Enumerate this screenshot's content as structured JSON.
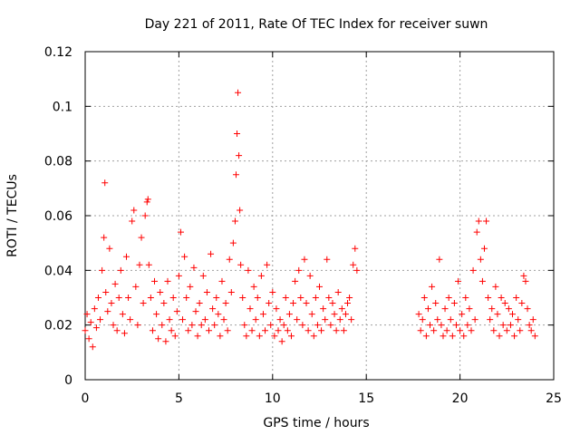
{
  "chart_data": {
    "type": "scatter",
    "title": "Day 221 of 2011, Rate Of TEC Index for receiver suwn",
    "xlabel": "GPS time / hours",
    "ylabel": "ROTI / TECUs",
    "xlim": [
      0,
      25
    ],
    "ylim": [
      0,
      0.12
    ],
    "xticks": [
      "0",
      "5",
      "10",
      "15",
      "20",
      "25"
    ],
    "yticks": [
      "0",
      "0.02",
      "0.04",
      "0.06",
      "0.08",
      "0.1",
      "0.12"
    ],
    "grid": true,
    "marker": "plus",
    "color": "#ff0000",
    "x": [
      0.0,
      0.1,
      0.2,
      0.3,
      0.4,
      0.5,
      0.6,
      0.7,
      0.8,
      0.9,
      1.0,
      1.05,
      1.1,
      1.2,
      1.3,
      1.4,
      1.5,
      1.6,
      1.7,
      1.8,
      1.9,
      2.0,
      2.1,
      2.2,
      2.3,
      2.4,
      2.5,
      2.6,
      2.7,
      2.8,
      2.9,
      3.0,
      3.1,
      3.2,
      3.3,
      3.35,
      3.4,
      3.5,
      3.6,
      3.7,
      3.8,
      3.9,
      4.0,
      4.1,
      4.2,
      4.3,
      4.4,
      4.5,
      4.6,
      4.7,
      4.8,
      4.9,
      5.0,
      5.1,
      5.2,
      5.3,
      5.4,
      5.5,
      5.6,
      5.7,
      5.8,
      5.9,
      6.0,
      6.1,
      6.2,
      6.3,
      6.4,
      6.5,
      6.6,
      6.7,
      6.8,
      6.9,
      7.0,
      7.1,
      7.2,
      7.3,
      7.4,
      7.5,
      7.6,
      7.7,
      7.8,
      7.9,
      8.0,
      8.05,
      8.1,
      8.15,
      8.2,
      8.25,
      8.3,
      8.4,
      8.5,
      8.6,
      8.7,
      8.8,
      8.9,
      9.0,
      9.1,
      9.2,
      9.3,
      9.4,
      9.5,
      9.6,
      9.7,
      9.8,
      9.9,
      10.0,
      10.1,
      10.2,
      10.3,
      10.4,
      10.5,
      10.6,
      10.7,
      10.8,
      10.9,
      11.0,
      11.1,
      11.2,
      11.3,
      11.4,
      11.5,
      11.6,
      11.7,
      11.8,
      11.9,
      12.0,
      12.1,
      12.2,
      12.3,
      12.4,
      12.5,
      12.6,
      12.7,
      12.8,
      12.9,
      13.0,
      13.1,
      13.2,
      13.3,
      13.4,
      13.5,
      13.6,
      13.7,
      13.8,
      13.9,
      14.0,
      14.1,
      14.2,
      14.3,
      14.4,
      14.5,
      17.8,
      17.9,
      18.0,
      18.1,
      18.2,
      18.3,
      18.4,
      18.5,
      18.6,
      18.7,
      18.8,
      18.9,
      19.0,
      19.1,
      19.2,
      19.3,
      19.4,
      19.5,
      19.6,
      19.7,
      19.8,
      19.9,
      20.0,
      20.1,
      20.2,
      20.3,
      20.4,
      20.5,
      20.6,
      20.7,
      20.8,
      20.9,
      21.0,
      21.1,
      21.2,
      21.3,
      21.4,
      21.5,
      21.6,
      21.7,
      21.8,
      21.9,
      22.0,
      22.1,
      22.2,
      22.3,
      22.4,
      22.5,
      22.6,
      22.7,
      22.8,
      22.9,
      23.0,
      23.1,
      23.2,
      23.3,
      23.4,
      23.5,
      23.6,
      23.7,
      23.8,
      23.9,
      24.0
    ],
    "y": [
      0.018,
      0.024,
      0.015,
      0.021,
      0.012,
      0.026,
      0.019,
      0.03,
      0.022,
      0.04,
      0.052,
      0.072,
      0.032,
      0.025,
      0.048,
      0.028,
      0.02,
      0.035,
      0.018,
      0.03,
      0.04,
      0.024,
      0.017,
      0.045,
      0.03,
      0.022,
      0.058,
      0.062,
      0.034,
      0.02,
      0.042,
      0.052,
      0.028,
      0.06,
      0.065,
      0.066,
      0.042,
      0.03,
      0.018,
      0.036,
      0.024,
      0.015,
      0.032,
      0.02,
      0.028,
      0.014,
      0.036,
      0.022,
      0.018,
      0.03,
      0.016,
      0.025,
      0.038,
      0.054,
      0.022,
      0.045,
      0.03,
      0.018,
      0.034,
      0.02,
      0.041,
      0.025,
      0.016,
      0.028,
      0.02,
      0.038,
      0.022,
      0.032,
      0.018,
      0.046,
      0.026,
      0.02,
      0.03,
      0.024,
      0.016,
      0.036,
      0.022,
      0.028,
      0.018,
      0.044,
      0.032,
      0.05,
      0.058,
      0.075,
      0.09,
      0.105,
      0.082,
      0.062,
      0.042,
      0.03,
      0.02,
      0.016,
      0.04,
      0.026,
      0.018,
      0.034,
      0.022,
      0.03,
      0.016,
      0.038,
      0.024,
      0.018,
      0.042,
      0.028,
      0.02,
      0.032,
      0.016,
      0.026,
      0.018,
      0.022,
      0.014,
      0.02,
      0.03,
      0.018,
      0.024,
      0.016,
      0.028,
      0.036,
      0.022,
      0.04,
      0.03,
      0.02,
      0.044,
      0.028,
      0.018,
      0.038,
      0.024,
      0.016,
      0.03,
      0.02,
      0.034,
      0.018,
      0.026,
      0.022,
      0.044,
      0.03,
      0.02,
      0.028,
      0.024,
      0.018,
      0.032,
      0.022,
      0.026,
      0.018,
      0.024,
      0.028,
      0.03,
      0.022,
      0.042,
      0.048,
      0.04,
      0.024,
      0.018,
      0.022,
      0.03,
      0.016,
      0.026,
      0.02,
      0.034,
      0.018,
      0.028,
      0.022,
      0.044,
      0.02,
      0.016,
      0.026,
      0.018,
      0.03,
      0.022,
      0.016,
      0.028,
      0.02,
      0.036,
      0.018,
      0.024,
      0.016,
      0.03,
      0.02,
      0.026,
      0.018,
      0.04,
      0.022,
      0.054,
      0.058,
      0.044,
      0.036,
      0.048,
      0.058,
      0.03,
      0.022,
      0.026,
      0.018,
      0.034,
      0.024,
      0.016,
      0.03,
      0.02,
      0.028,
      0.018,
      0.026,
      0.02,
      0.024,
      0.016,
      0.03,
      0.022,
      0.018,
      0.028,
      0.038,
      0.036,
      0.026,
      0.02,
      0.018,
      0.022,
      0.016
    ]
  }
}
